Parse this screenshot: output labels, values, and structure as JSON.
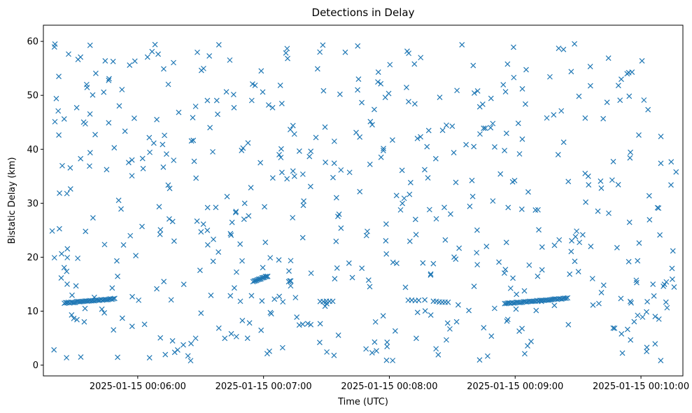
{
  "chart_data": {
    "type": "scatter",
    "title": "Detections in Delay",
    "xlabel": "Time (UTC)",
    "ylabel": "Bistatic Delay (km)",
    "x_unit": "time",
    "xlim": [
      "2025-01-15 00:05:15",
      "2025-01-15 00:10:20"
    ],
    "ylim": [
      -2,
      63
    ],
    "yticks": [
      0,
      10,
      20,
      30,
      40,
      50,
      60
    ],
    "xticks": [
      "2025-01-15 00:06:00",
      "2025-01-15 00:07:00",
      "2025-01-15 00:08:00",
      "2025-01-15 00:09:00",
      "2025-01-15 00:10:00"
    ],
    "marker": "x",
    "color": "#1f77b4",
    "grid": false,
    "tracks": [
      {
        "start": [
          "2025-01-15 00:05:25",
          11.5
        ],
        "end": [
          "2025-01-15 00:05:49",
          12.3
        ],
        "count": 38
      },
      {
        "start": [
          "2025-01-15 00:06:55",
          15.5
        ],
        "end": [
          "2025-01-15 00:07:02",
          16.5
        ],
        "count": 14
      },
      {
        "start": [
          "2025-01-15 00:07:12",
          15.5
        ],
        "end": [
          "2025-01-15 00:07:13",
          15.6
        ],
        "count": 3
      },
      {
        "start": [
          "2025-01-15 00:07:27",
          11.8
        ],
        "end": [
          "2025-01-15 00:07:33",
          11.9
        ],
        "count": 5
      },
      {
        "start": [
          "2025-01-15 00:08:09",
          12.0
        ],
        "end": [
          "2025-01-15 00:08:14",
          12.0
        ],
        "count": 4
      },
      {
        "start": [
          "2025-01-15 00:08:21",
          11.8
        ],
        "end": [
          "2025-01-15 00:08:28",
          11.6
        ],
        "count": 6
      },
      {
        "start": [
          "2025-01-15 00:08:55",
          11.4
        ],
        "end": [
          "2025-01-15 00:09:25",
          12.4
        ],
        "count": 44
      }
    ],
    "clutter": {
      "count": 560,
      "x_range": [
        "2025-01-15 00:05:18",
        "2025-01-15 00:10:17"
      ],
      "y_range": [
        0.8,
        59.6
      ],
      "seed": 7
    }
  }
}
